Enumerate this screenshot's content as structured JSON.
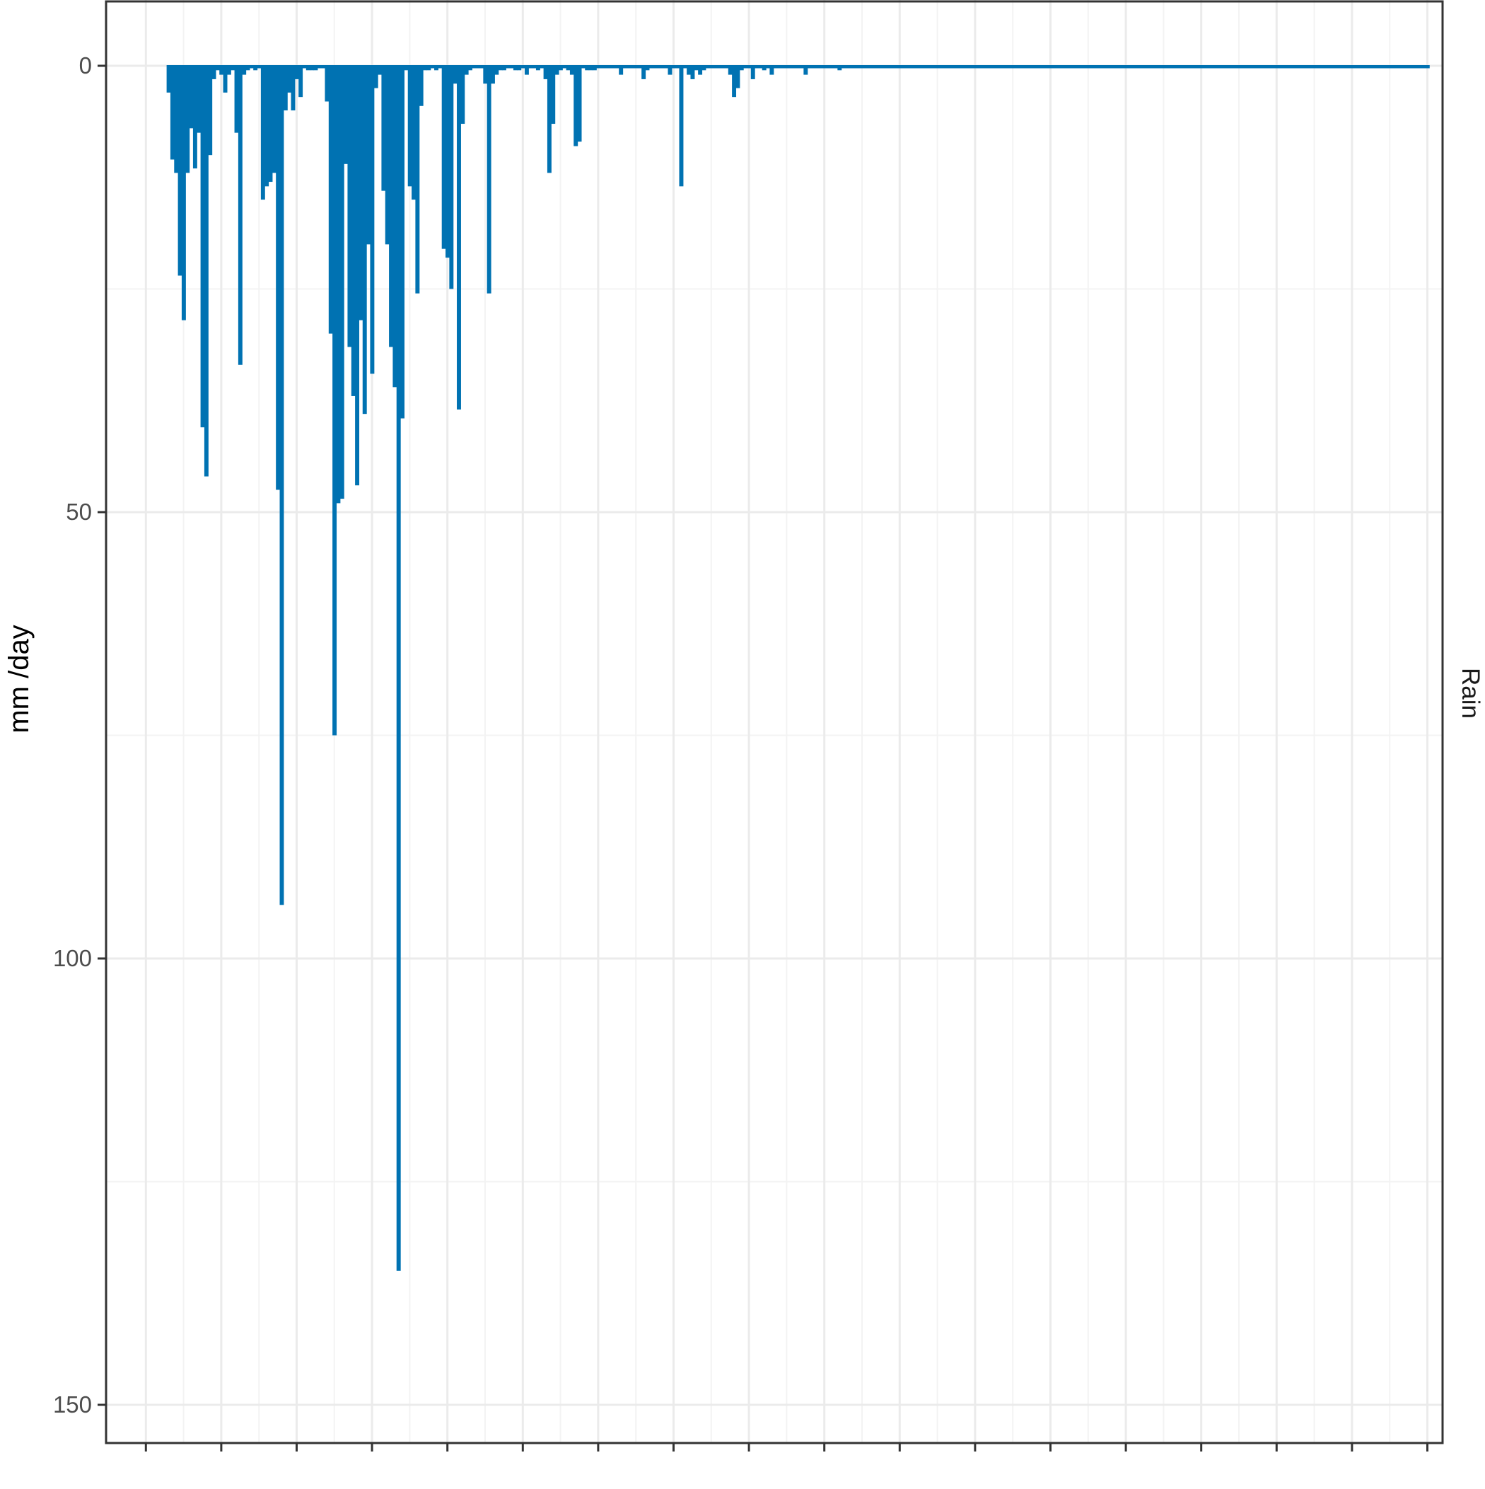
{
  "colors": {
    "bar": "#0072b2",
    "grid_major": "#ebebeb",
    "grid_minor": "#f3f3f3",
    "panel_border": "#333333",
    "background": "#ffffff"
  },
  "chart_data": {
    "type": "bar",
    "orientation": "reversed-y",
    "xlabel": "",
    "ylabel": "mm /day",
    "strip_label": "Rain",
    "ylim": [
      0,
      155
    ],
    "y_reversed": true,
    "yticks": [
      0,
      50,
      100,
      150
    ],
    "ytick_labels": [
      "0",
      "50",
      "100",
      "150"
    ],
    "xlim": [
      0,
      355
    ],
    "x_major_breaks": [
      10,
      30,
      50,
      70,
      90,
      110,
      130,
      150,
      170,
      190,
      210,
      230,
      250,
      270,
      290,
      310,
      330,
      350
    ],
    "x_tick_labels": [
      "",
      "",
      "",
      "",
      "",
      "",
      "",
      "",
      "",
      "",
      "",
      "",
      "",
      "",
      "",
      "",
      "",
      ""
    ],
    "grid": true,
    "series": [
      {
        "values": [
          [
            16,
            3
          ],
          [
            17,
            10.5
          ],
          [
            18,
            12
          ],
          [
            19,
            23.5
          ],
          [
            20,
            28.5
          ],
          [
            21,
            12
          ],
          [
            22,
            7
          ],
          [
            23,
            11.5
          ],
          [
            24,
            7.5
          ],
          [
            25,
            40.5
          ],
          [
            26,
            46
          ],
          [
            27,
            10
          ],
          [
            28,
            1.5
          ],
          [
            29,
            0.5
          ],
          [
            30,
            1
          ],
          [
            31,
            3
          ],
          [
            32,
            1
          ],
          [
            33,
            0.5
          ],
          [
            34,
            7.5
          ],
          [
            35,
            33.5
          ],
          [
            36,
            1
          ],
          [
            37,
            0.5
          ],
          [
            38,
            0
          ],
          [
            39,
            0.5
          ],
          [
            40,
            0
          ],
          [
            41,
            15
          ],
          [
            42,
            13.5
          ],
          [
            43,
            13
          ],
          [
            44,
            12
          ],
          [
            45,
            47.5
          ],
          [
            46,
            94
          ],
          [
            47,
            5
          ],
          [
            48,
            3
          ],
          [
            49,
            5
          ],
          [
            50,
            1.5
          ],
          [
            51,
            3.5
          ],
          [
            52,
            0
          ],
          [
            53,
            0.5
          ],
          [
            54,
            0.5
          ],
          [
            55,
            0.5
          ],
          [
            56,
            0
          ],
          [
            57,
            0
          ],
          [
            58,
            4
          ],
          [
            59,
            30
          ],
          [
            60,
            75
          ],
          [
            61,
            49
          ],
          [
            62,
            48.5
          ],
          [
            63,
            11
          ],
          [
            64,
            31.5
          ],
          [
            65,
            37
          ],
          [
            66,
            47
          ],
          [
            67,
            28.5
          ],
          [
            68,
            39
          ],
          [
            69,
            20
          ],
          [
            70,
            34.5
          ],
          [
            71,
            2.5
          ],
          [
            72,
            1
          ],
          [
            73,
            14
          ],
          [
            74,
            20
          ],
          [
            75,
            31.5
          ],
          [
            76,
            36
          ],
          [
            77,
            135
          ],
          [
            78,
            39.5
          ],
          [
            79,
            0.5
          ],
          [
            80,
            13.5
          ],
          [
            81,
            15
          ],
          [
            82,
            25.5
          ],
          [
            83,
            4.5
          ],
          [
            84,
            0.5
          ],
          [
            85,
            0.5
          ],
          [
            86,
            0
          ],
          [
            87,
            0.5
          ],
          [
            88,
            0
          ],
          [
            89,
            20.5
          ],
          [
            90,
            21.5
          ],
          [
            91,
            25
          ],
          [
            92,
            2
          ],
          [
            93,
            38.5
          ],
          [
            94,
            6.5
          ],
          [
            95,
            1
          ],
          [
            96,
            0.5
          ],
          [
            97,
            0
          ],
          [
            98,
            0
          ],
          [
            99,
            0
          ],
          [
            100,
            2
          ],
          [
            101,
            25.5
          ],
          [
            102,
            2
          ],
          [
            103,
            1
          ],
          [
            104,
            0.5
          ],
          [
            105,
            0.5
          ],
          [
            106,
            0
          ],
          [
            107,
            0
          ],
          [
            108,
            0.5
          ],
          [
            109,
            0.5
          ],
          [
            110,
            0
          ],
          [
            111,
            1
          ],
          [
            112,
            0
          ],
          [
            113,
            0
          ],
          [
            114,
            0.5
          ],
          [
            115,
            0
          ],
          [
            116,
            1.5
          ],
          [
            117,
            12
          ],
          [
            118,
            6.5
          ],
          [
            119,
            1
          ],
          [
            120,
            0.5
          ],
          [
            121,
            0
          ],
          [
            122,
            0.5
          ],
          [
            123,
            1
          ],
          [
            124,
            9
          ],
          [
            125,
            8.5
          ],
          [
            126,
            0
          ],
          [
            127,
            0.5
          ],
          [
            128,
            0.5
          ],
          [
            129,
            0.5
          ],
          [
            130,
            0
          ],
          [
            131,
            0
          ],
          [
            132,
            0
          ],
          [
            133,
            0
          ],
          [
            134,
            0
          ],
          [
            135,
            0
          ],
          [
            136,
            1
          ],
          [
            137,
            0
          ],
          [
            138,
            0
          ],
          [
            139,
            0
          ],
          [
            140,
            0
          ],
          [
            141,
            0
          ],
          [
            142,
            1.5
          ],
          [
            143,
            0.5
          ],
          [
            144,
            0
          ],
          [
            145,
            0
          ],
          [
            146,
            0
          ],
          [
            147,
            0
          ],
          [
            148,
            0
          ],
          [
            149,
            1
          ],
          [
            150,
            0
          ],
          [
            151,
            0
          ],
          [
            152,
            13.5
          ],
          [
            153,
            0
          ],
          [
            154,
            1
          ],
          [
            155,
            1.5
          ],
          [
            156,
            0.5
          ],
          [
            157,
            1
          ],
          [
            158,
            0.5
          ],
          [
            159,
            0
          ],
          [
            160,
            0
          ],
          [
            161,
            0
          ],
          [
            162,
            0
          ],
          [
            163,
            0
          ],
          [
            164,
            0
          ],
          [
            165,
            1
          ],
          [
            166,
            3.5
          ],
          [
            167,
            2.5
          ],
          [
            168,
            0.5
          ],
          [
            169,
            0
          ],
          [
            170,
            0
          ],
          [
            171,
            1.5
          ],
          [
            172,
            0
          ],
          [
            173,
            0
          ],
          [
            174,
            0.5
          ],
          [
            175,
            0
          ],
          [
            176,
            1
          ],
          [
            177,
            0
          ],
          [
            178,
            0
          ],
          [
            179,
            0
          ],
          [
            180,
            0
          ],
          [
            181,
            0
          ],
          [
            182,
            0
          ],
          [
            183,
            0
          ],
          [
            184,
            0
          ],
          [
            185,
            1
          ],
          [
            186,
            0
          ],
          [
            187,
            0
          ],
          [
            188,
            0
          ],
          [
            189,
            0
          ],
          [
            190,
            0
          ],
          [
            191,
            0
          ],
          [
            192,
            0
          ],
          [
            193,
            0
          ],
          [
            194,
            0.5
          ],
          [
            195,
            0
          ],
          [
            196,
            0
          ],
          [
            197,
            0
          ],
          [
            198,
            0
          ],
          [
            199,
            0
          ],
          [
            200,
            0
          ],
          [
            201,
            0
          ],
          [
            202,
            0
          ],
          [
            203,
            0
          ],
          [
            204,
            0
          ],
          [
            205,
            0
          ],
          [
            206,
            0
          ],
          [
            207,
            0
          ],
          [
            208,
            0
          ],
          [
            209,
            0
          ],
          [
            210,
            0
          ],
          [
            211,
            0
          ],
          [
            212,
            0
          ],
          [
            213,
            0
          ],
          [
            214,
            0
          ],
          [
            215,
            0
          ],
          [
            216,
            0
          ],
          [
            217,
            0
          ],
          [
            218,
            0
          ],
          [
            219,
            0
          ],
          [
            220,
            0
          ],
          [
            221,
            0
          ],
          [
            222,
            0
          ],
          [
            223,
            0
          ],
          [
            224,
            0
          ],
          [
            225,
            0
          ],
          [
            226,
            0
          ],
          [
            227,
            0
          ],
          [
            228,
            0
          ],
          [
            229,
            0
          ],
          [
            230,
            0
          ],
          [
            231,
            0
          ],
          [
            232,
            0
          ],
          [
            233,
            0
          ],
          [
            234,
            0
          ],
          [
            235,
            0
          ],
          [
            236,
            0
          ],
          [
            237,
            0
          ],
          [
            238,
            0
          ],
          [
            239,
            0
          ],
          [
            240,
            0
          ],
          [
            241,
            0
          ],
          [
            242,
            0
          ],
          [
            243,
            0
          ],
          [
            244,
            0
          ],
          [
            245,
            0
          ],
          [
            246,
            0
          ],
          [
            247,
            0
          ],
          [
            248,
            0
          ],
          [
            249,
            0
          ],
          [
            250,
            0
          ],
          [
            251,
            0
          ],
          [
            252,
            0
          ],
          [
            253,
            0
          ],
          [
            254,
            0
          ],
          [
            255,
            0
          ],
          [
            256,
            0
          ],
          [
            257,
            0
          ],
          [
            258,
            0
          ],
          [
            259,
            0
          ],
          [
            260,
            0
          ],
          [
            261,
            0
          ],
          [
            262,
            0
          ],
          [
            263,
            0
          ],
          [
            264,
            0
          ],
          [
            265,
            0
          ],
          [
            266,
            0
          ],
          [
            267,
            0
          ],
          [
            268,
            0
          ],
          [
            269,
            0
          ],
          [
            270,
            0
          ],
          [
            271,
            0
          ],
          [
            272,
            0
          ],
          [
            273,
            0
          ],
          [
            274,
            0
          ],
          [
            275,
            0
          ],
          [
            276,
            0
          ],
          [
            277,
            0
          ],
          [
            278,
            0
          ],
          [
            279,
            0
          ],
          [
            280,
            0
          ],
          [
            281,
            0
          ],
          [
            282,
            0
          ],
          [
            283,
            0
          ],
          [
            284,
            0
          ],
          [
            285,
            0
          ],
          [
            286,
            0
          ],
          [
            287,
            0
          ],
          [
            288,
            0
          ],
          [
            289,
            0
          ],
          [
            290,
            0
          ],
          [
            291,
            0
          ],
          [
            292,
            0
          ],
          [
            293,
            0
          ],
          [
            294,
            0
          ],
          [
            295,
            0
          ],
          [
            296,
            0
          ],
          [
            297,
            0
          ],
          [
            298,
            0
          ],
          [
            299,
            0
          ],
          [
            300,
            0
          ],
          [
            301,
            0
          ],
          [
            302,
            0
          ],
          [
            303,
            0
          ],
          [
            304,
            0
          ],
          [
            305,
            0
          ],
          [
            306,
            0
          ],
          [
            307,
            0
          ],
          [
            308,
            0
          ],
          [
            309,
            0
          ],
          [
            310,
            0
          ],
          [
            311,
            0
          ],
          [
            312,
            0
          ],
          [
            313,
            0
          ],
          [
            314,
            0
          ],
          [
            315,
            0
          ],
          [
            316,
            0
          ],
          [
            317,
            0
          ],
          [
            318,
            0
          ],
          [
            319,
            0
          ],
          [
            320,
            0
          ],
          [
            321,
            0
          ],
          [
            322,
            0
          ],
          [
            323,
            0
          ],
          [
            324,
            0
          ],
          [
            325,
            0
          ],
          [
            326,
            0
          ],
          [
            327,
            0
          ],
          [
            328,
            0
          ],
          [
            329,
            0
          ],
          [
            330,
            0
          ],
          [
            331,
            0
          ],
          [
            332,
            0
          ],
          [
            333,
            0
          ],
          [
            334,
            0
          ],
          [
            335,
            0
          ],
          [
            336,
            0
          ],
          [
            337,
            0
          ],
          [
            338,
            0
          ],
          [
            339,
            0
          ],
          [
            340,
            0
          ],
          [
            341,
            0
          ],
          [
            342,
            0
          ],
          [
            343,
            0
          ],
          [
            344,
            0
          ],
          [
            345,
            0
          ],
          [
            346,
            0
          ],
          [
            347,
            0
          ],
          [
            348,
            0
          ],
          [
            349,
            0
          ],
          [
            350,
            0
          ]
        ]
      }
    ]
  }
}
